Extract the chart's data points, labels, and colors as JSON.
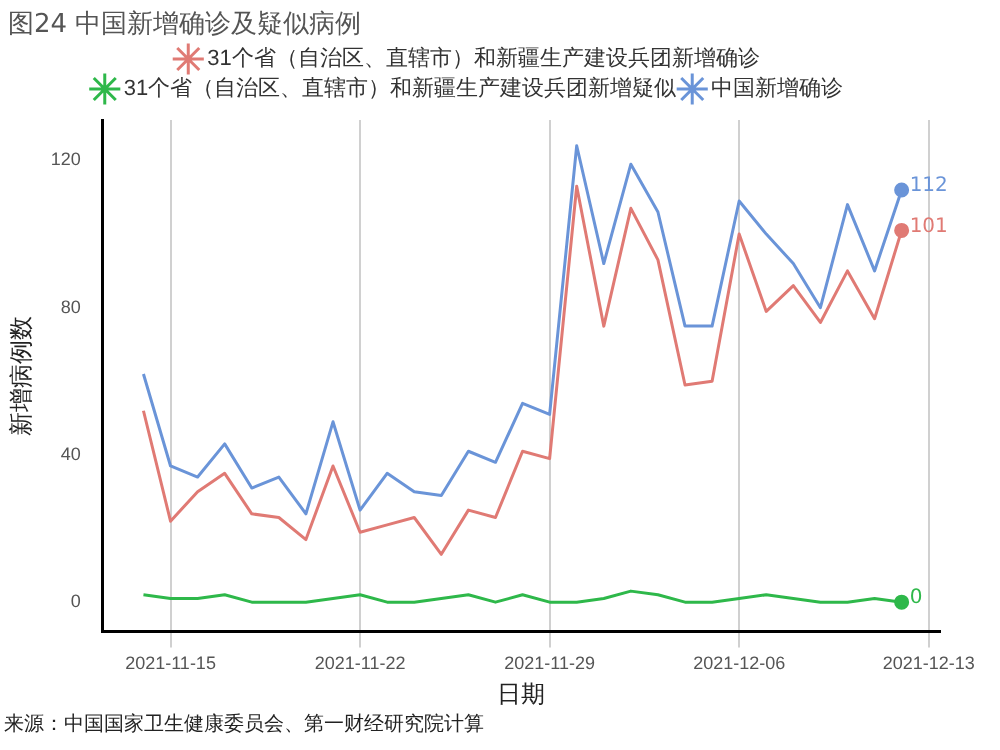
{
  "chart_data": {
    "type": "line",
    "title": "图24 中国新增确诊及疑似病例",
    "xlabel": "日期",
    "ylabel": "新增病例数",
    "annotations": [
      "来源：中国国家卫生健康委员会、第一财经研究院计算"
    ],
    "x": [
      "2021-11-14",
      "2021-11-15",
      "2021-11-16",
      "2021-11-17",
      "2021-11-18",
      "2021-11-19",
      "2021-11-20",
      "2021-11-21",
      "2021-11-22",
      "2021-11-23",
      "2021-11-24",
      "2021-11-25",
      "2021-11-26",
      "2021-11-27",
      "2021-11-28",
      "2021-11-29",
      "2021-11-30",
      "2021-12-01",
      "2021-12-02",
      "2021-12-03",
      "2021-12-04",
      "2021-12-05",
      "2021-12-06",
      "2021-12-07",
      "2021-12-08",
      "2021-12-09",
      "2021-12-10",
      "2021-12-11",
      "2021-12-12"
    ],
    "series": [
      {
        "name": "31个省（自治区、直辖市）和新疆生产建设兵团新增确诊",
        "color": "#e07a74",
        "values": [
          52,
          22,
          30,
          35,
          24,
          23,
          17,
          37,
          19,
          21,
          23,
          13,
          25,
          23,
          41,
          39,
          113,
          75,
          107,
          93,
          59,
          60,
          100,
          79,
          86,
          76,
          90,
          77,
          101
        ],
        "value_labels": [
          null,
          null,
          null,
          null,
          null,
          null,
          null,
          null,
          null,
          null,
          null,
          null,
          null,
          null,
          null,
          null,
          null,
          null,
          null,
          null,
          null,
          null,
          null,
          null,
          null,
          null,
          null,
          null,
          "101"
        ]
      },
      {
        "name": "31个省（自治区、直辖市）和新疆生产建设兵团新增疑似",
        "color": "#2eb84a",
        "values": [
          2,
          1,
          1,
          2,
          0,
          0,
          0,
          1,
          2,
          0,
          0,
          1,
          2,
          0,
          2,
          0,
          0,
          1,
          3,
          2,
          0,
          0,
          1,
          2,
          1,
          0,
          0,
          1,
          0
        ],
        "value_labels": [
          null,
          null,
          null,
          null,
          null,
          null,
          null,
          null,
          null,
          null,
          null,
          null,
          null,
          null,
          null,
          null,
          null,
          null,
          null,
          null,
          null,
          null,
          null,
          null,
          null,
          null,
          null,
          null,
          "0"
        ]
      },
      {
        "name": "中国新增确诊",
        "color": "#6a94d8",
        "values": [
          62,
          37,
          34,
          43,
          31,
          34,
          24,
          49,
          25,
          35,
          30,
          29,
          41,
          38,
          54,
          51,
          124,
          92,
          119,
          106,
          75,
          75,
          109,
          100,
          92,
          80,
          108,
          90,
          112
        ],
        "value_labels": [
          null,
          null,
          null,
          null,
          null,
          null,
          null,
          null,
          null,
          null,
          null,
          null,
          null,
          null,
          null,
          null,
          null,
          null,
          null,
          null,
          null,
          null,
          null,
          null,
          null,
          null,
          null,
          null,
          "112"
        ]
      }
    ],
    "xlim": [
      "2021-11-12T12:00",
      "2021-12-13T10:00"
    ],
    "xticks": [
      "2021-11-15",
      "2021-11-22",
      "2021-11-29",
      "2021-12-06",
      "2021-12-13"
    ],
    "ylim": [
      -8,
      131
    ],
    "yticks": [
      0,
      40,
      80,
      120
    ],
    "grid": "x",
    "legend": "top"
  }
}
